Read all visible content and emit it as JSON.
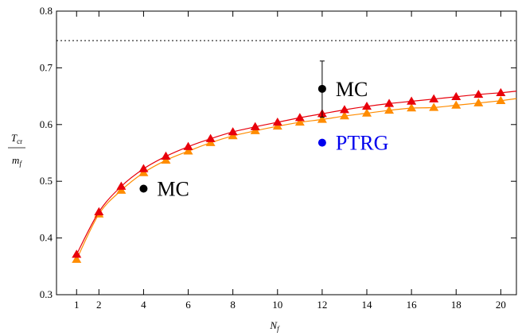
{
  "chart_data": {
    "type": "line",
    "x": [
      1,
      2,
      3,
      4,
      5,
      6,
      7,
      8,
      9,
      10,
      11,
      12,
      13,
      14,
      15,
      16,
      17,
      18,
      19,
      20
    ],
    "xlim": [
      0.1,
      20.7
    ],
    "ylim": [
      0.3,
      0.8
    ],
    "x_ticks": [
      1,
      2,
      4,
      6,
      8,
      10,
      12,
      14,
      16,
      18,
      20
    ],
    "x_tick_labels": [
      "1",
      "2",
      "4",
      "6",
      "8",
      "10",
      "12",
      "14",
      "16",
      "18",
      "20"
    ],
    "y_ticks": [
      0.3,
      0.4,
      0.5,
      0.6,
      0.7,
      0.8
    ],
    "y_tick_labels": [
      "0.3",
      "0.4",
      "0.5",
      "0.6",
      "0.7",
      "0.8"
    ],
    "xlabel": {
      "main": "N",
      "sub": "f"
    },
    "ylabel": {
      "numerator": "T",
      "numerator_sub": "cr",
      "denominator": "m",
      "denominator_sub": "f"
    },
    "grid": false,
    "series": [
      {
        "color": "#e8000b",
        "marker": "triangle",
        "values": [
          0.371,
          0.446,
          0.491,
          0.522,
          0.544,
          0.561,
          0.575,
          0.587,
          0.596,
          0.604,
          0.612,
          0.619,
          0.626,
          0.632,
          0.637,
          0.641,
          0.645,
          0.649,
          0.653,
          0.656
        ]
      },
      {
        "color": "#ff8c00",
        "marker": "triangle",
        "values": [
          0.362,
          0.442,
          0.484,
          0.515,
          0.537,
          0.553,
          0.568,
          0.58,
          0.589,
          0.597,
          0.604,
          0.609,
          0.615,
          0.62,
          0.625,
          0.629,
          0.63,
          0.634,
          0.638,
          0.642
        ]
      }
    ],
    "reference_line": {
      "y": 0.748,
      "style": "dotted",
      "color": "#000000"
    },
    "points": [
      {
        "label": "MC",
        "x": 4,
        "y": 0.487,
        "color": "#000000"
      },
      {
        "label": "MC",
        "x": 12,
        "y": 0.663,
        "err_high": 0.712,
        "err_low": 0.613,
        "color": "#000000"
      },
      {
        "label": "PTRG",
        "x": 12,
        "y": 0.568,
        "color": "#0000ee"
      }
    ]
  }
}
